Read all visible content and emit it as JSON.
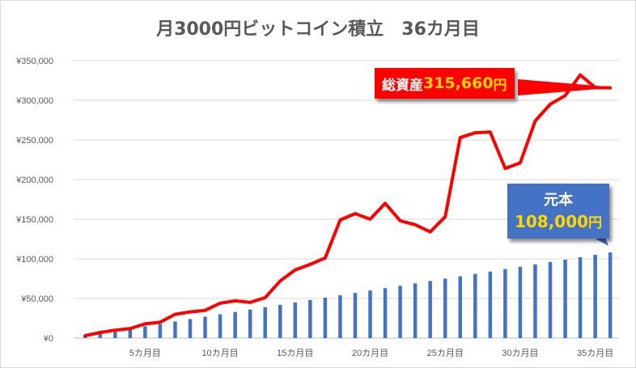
{
  "chart_data": {
    "type": "bar+line",
    "title": "月3000円ビットコイン積立　36カ月目",
    "xlabel": "",
    "ylabel": "",
    "ylim": [
      0,
      350000
    ],
    "y_ticks": [
      "¥0",
      "¥50,000",
      "¥100,000",
      "¥150,000",
      "¥200,000",
      "¥250,000",
      "¥300,000",
      "¥350,000"
    ],
    "y_tick_values": [
      0,
      50000,
      100000,
      150000,
      200000,
      250000,
      300000,
      350000
    ],
    "x_ticks": [
      {
        "month": 5,
        "label": "5カ月目"
      },
      {
        "month": 10,
        "label": "10カ月目"
      },
      {
        "month": 15,
        "label": "15カ月目"
      },
      {
        "month": 20,
        "label": "20カ月目"
      },
      {
        "month": 25,
        "label": "25カ月目"
      },
      {
        "month": 30,
        "label": "30カ月目"
      },
      {
        "month": 35,
        "label": "35カ月目"
      }
    ],
    "months": [
      1,
      2,
      3,
      4,
      5,
      6,
      7,
      8,
      9,
      10,
      11,
      12,
      13,
      14,
      15,
      16,
      17,
      18,
      19,
      20,
      21,
      22,
      23,
      24,
      25,
      26,
      27,
      28,
      29,
      30,
      31,
      32,
      33,
      34,
      35,
      36
    ],
    "grid": true,
    "series": [
      {
        "kind": "bar",
        "color": "#4472c4",
        "values": [
          3000,
          6000,
          9000,
          12000,
          15000,
          18000,
          21000,
          24000,
          27000,
          30000,
          33000,
          36000,
          39000,
          42000,
          45000,
          48000,
          51000,
          54000,
          57000,
          60000,
          63000,
          66000,
          69000,
          72000,
          75000,
          78000,
          81000,
          84000,
          87000,
          90000,
          93000,
          96000,
          99000,
          102000,
          105000,
          108000
        ]
      },
      {
        "kind": "line",
        "color": "#ff0000",
        "values": [
          3000,
          7000,
          10000,
          12000,
          18000,
          20000,
          30000,
          33000,
          35000,
          44000,
          47000,
          45000,
          51000,
          72000,
          86000,
          93000,
          101000,
          149000,
          157000,
          150000,
          170000,
          148000,
          143000,
          134000,
          153000,
          253000,
          259000,
          260000,
          214000,
          221000,
          274000,
          295000,
          306000,
          332000,
          316000,
          315660
        ]
      }
    ],
    "annotations": {
      "total": {
        "label": "総資産",
        "value": "315,660",
        "unit": "円"
      },
      "principal": {
        "label": "元本",
        "value": "108,000",
        "unit": "円"
      }
    }
  }
}
